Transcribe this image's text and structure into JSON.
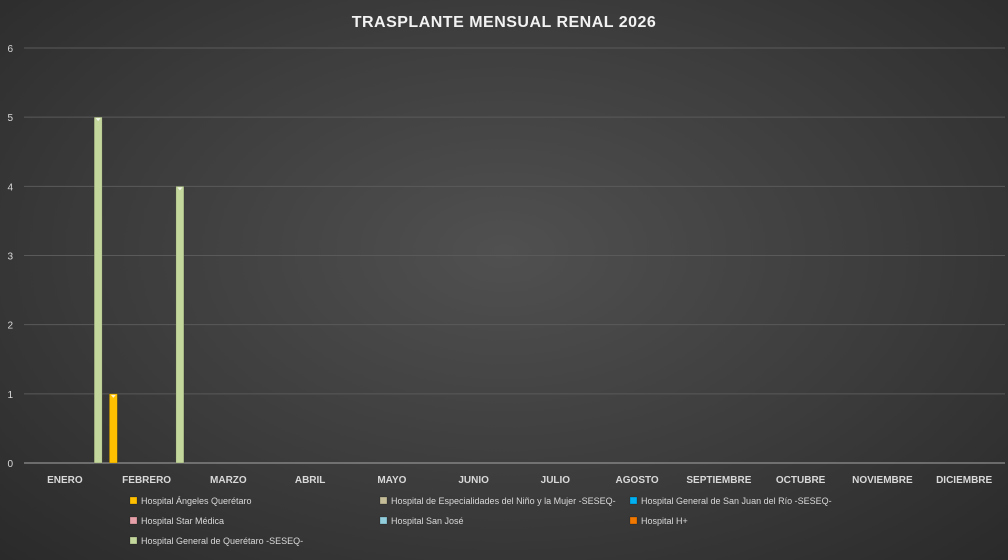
{
  "chart_data": {
    "type": "bar",
    "title": "TRASPLANTE MENSUAL RENAL 2026",
    "xlabel": "",
    "ylabel": "",
    "ylim": [
      0,
      6
    ],
    "yticks": [
      0,
      1,
      2,
      3,
      4,
      5,
      6
    ],
    "grid": true,
    "legend_position": "bottom",
    "categories": [
      "ENERO",
      "FEBRERO",
      "MARZO",
      "ABRIL",
      "MAYO",
      "JUNIO",
      "JULIO",
      "AGOSTO",
      "SEPTIEMBRE",
      "OCTUBRE",
      "NOVIEMBRE",
      "DICIEMBRE"
    ],
    "series": [
      {
        "name": "Hospital Ángeles Querétaro",
        "color": "#ffc000",
        "values": [
          0,
          1,
          0,
          0,
          0,
          0,
          0,
          0,
          0,
          0,
          0,
          0
        ]
      },
      {
        "name": "Hospital de Especialidades del Niño y la Mujer -SESEQ-",
        "color": "#c4bd97",
        "values": [
          0,
          0,
          0,
          0,
          0,
          0,
          0,
          0,
          0,
          0,
          0,
          0
        ]
      },
      {
        "name": "Hospital General de San Juan del Río -SESEQ-",
        "color": "#00b0f0",
        "values": [
          0,
          0,
          0,
          0,
          0,
          0,
          0,
          0,
          0,
          0,
          0,
          0
        ]
      },
      {
        "name": "Hospital Star Médica",
        "color": "#e6a0a8",
        "values": [
          0,
          0,
          0,
          0,
          0,
          0,
          0,
          0,
          0,
          0,
          0,
          0
        ]
      },
      {
        "name": "Hospital San José",
        "color": "#92cddc",
        "values": [
          0,
          0,
          0,
          0,
          0,
          0,
          0,
          0,
          0,
          0,
          0,
          0
        ]
      },
      {
        "name": "Hospital H+",
        "color": "#f07800",
        "values": [
          0,
          0,
          0,
          0,
          0,
          0,
          0,
          0,
          0,
          0,
          0,
          0
        ]
      },
      {
        "name": "Hospital General de Querétaro -SESEQ-",
        "color": "#c3d69b",
        "values": [
          5,
          4,
          0,
          0,
          0,
          0,
          0,
          0,
          0,
          0,
          0,
          0
        ]
      }
    ]
  }
}
